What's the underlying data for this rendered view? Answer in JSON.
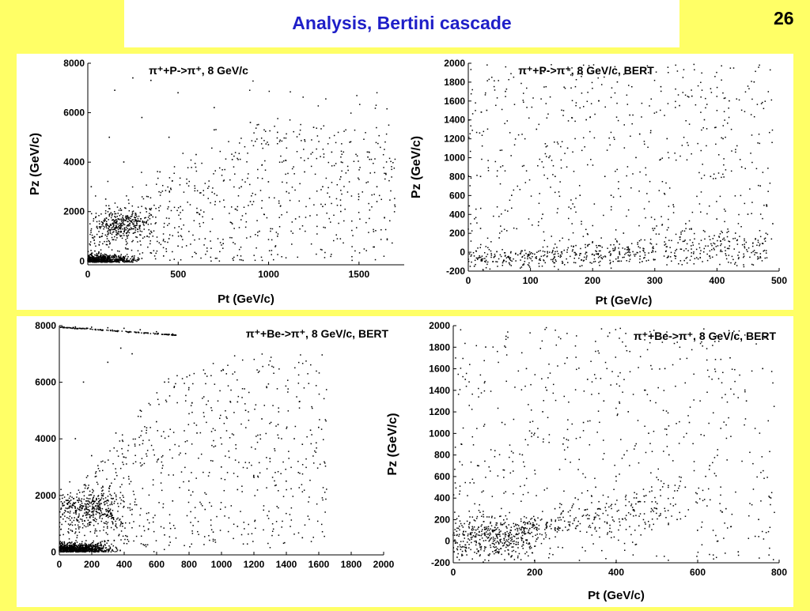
{
  "slide": {
    "title": "Analysis, Bertini cascade",
    "page_number": "26",
    "colors": {
      "background": "#ffff66",
      "title": "#1f1fc8",
      "panel": "#ffffff",
      "points": "#000000"
    }
  },
  "chart_data": [
    {
      "type": "scatter",
      "title": "π⁺+P->π⁺, 8 GeV/c",
      "xlabel": "Pt (GeV/c)",
      "ylabel": "Pz (GeV/c)",
      "xlim": [
        0,
        1750
      ],
      "ylim": [
        -150,
        8000
      ],
      "xticks": [
        0,
        500,
        1000,
        1500
      ],
      "yticks": [
        0,
        2000,
        4000,
        6000,
        8000
      ],
      "grid": false,
      "marker_color": "#000000",
      "estimated_point_count": 2600,
      "points": [
        [
          120,
          50
        ],
        [
          60,
          20
        ],
        [
          200,
          10
        ],
        [
          300,
          100
        ],
        [
          150,
          1800
        ],
        [
          250,
          1500
        ],
        [
          180,
          1300
        ],
        [
          420,
          200
        ],
        [
          500,
          600
        ],
        [
          650,
          900
        ],
        [
          800,
          1500
        ],
        [
          900,
          2400
        ],
        [
          1000,
          3200
        ],
        [
          1100,
          2800
        ],
        [
          1200,
          3600
        ],
        [
          1300,
          3000
        ],
        [
          1400,
          3400
        ],
        [
          1500,
          2600
        ],
        [
          1600,
          3000
        ],
        [
          1650,
          3500
        ],
        [
          1550,
          4200
        ],
        [
          1350,
          4400
        ],
        [
          1200,
          4900
        ],
        [
          1050,
          5200
        ],
        [
          900,
          5600
        ],
        [
          700,
          6200
        ],
        [
          500,
          6800
        ],
        [
          350,
          7300
        ],
        [
          250,
          7400
        ],
        [
          150,
          6900
        ],
        [
          120,
          5000
        ],
        [
          200,
          4000
        ],
        [
          400,
          3600
        ],
        [
          600,
          4300
        ],
        [
          800,
          4100
        ],
        [
          1000,
          4700
        ],
        [
          1250,
          5400
        ],
        [
          1450,
          4800
        ],
        [
          1300,
          2200
        ],
        [
          1150,
          1700
        ],
        [
          950,
          1200
        ],
        [
          750,
          700
        ],
        [
          600,
          300
        ],
        [
          450,
          900
        ],
        [
          350,
          1200
        ],
        [
          100,
          2500
        ],
        [
          80,
          1000
        ],
        [
          40,
          400
        ],
        [
          20,
          3000
        ],
        [
          300,
          5800
        ],
        [
          450,
          5000
        ],
        [
          700,
          5300
        ],
        [
          850,
          3000
        ],
        [
          1050,
          1000
        ],
        [
          1400,
          2000
        ],
        [
          1600,
          2400
        ]
      ]
    },
    {
      "type": "scatter",
      "title": "π⁺+P->π⁺, 8 GeV/c, BERT",
      "xlabel": "Pt (GeV/c)",
      "ylabel": "Pz (GeV/c)",
      "xlim": [
        0,
        500
      ],
      "ylim": [
        -200,
        2000
      ],
      "xticks": [
        0,
        100,
        200,
        300,
        400,
        500
      ],
      "yticks": [
        -200,
        0,
        200,
        400,
        600,
        800,
        1000,
        1200,
        1400,
        1600,
        1800,
        2000
      ],
      "grid": false,
      "marker_color": "#000000",
      "estimated_point_count": 1800,
      "points": [
        [
          80,
          -30
        ],
        [
          100,
          -20
        ],
        [
          150,
          0
        ],
        [
          200,
          100
        ],
        [
          250,
          200
        ],
        [
          300,
          250
        ],
        [
          350,
          300
        ],
        [
          400,
          350
        ],
        [
          450,
          400
        ],
        [
          480,
          500
        ],
        [
          20,
          250
        ],
        [
          50,
          150
        ],
        [
          120,
          400
        ],
        [
          180,
          600
        ],
        [
          220,
          800
        ],
        [
          270,
          1000
        ],
        [
          320,
          1200
        ],
        [
          380,
          1400
        ],
        [
          420,
          1600
        ],
        [
          460,
          1800
        ],
        [
          90,
          1900
        ],
        [
          60,
          1700
        ],
        [
          30,
          1500
        ],
        [
          110,
          1300
        ],
        [
          160,
          1100
        ],
        [
          210,
          1600
        ],
        [
          260,
          1450
        ],
        [
          310,
          1750
        ],
        [
          360,
          1650
        ],
        [
          410,
          1200
        ],
        [
          440,
          900
        ],
        [
          470,
          700
        ],
        [
          490,
          300
        ],
        [
          10,
          -150
        ],
        [
          40,
          -100
        ],
        [
          130,
          1000
        ],
        [
          190,
          1400
        ],
        [
          240,
          1800
        ],
        [
          290,
          1900
        ],
        [
          340,
          1550
        ],
        [
          390,
          800
        ],
        [
          430,
          200
        ],
        [
          470,
          -50
        ],
        [
          20,
          800
        ],
        [
          70,
          600
        ],
        [
          140,
          800
        ],
        [
          230,
          600
        ],
        [
          330,
          500
        ],
        [
          280,
          -100
        ],
        [
          180,
          -150
        ]
      ]
    },
    {
      "type": "scatter",
      "title": "π⁺+Be->π⁺, 8 GeV/c, BERT",
      "xlabel": "",
      "ylabel": "",
      "xlim": [
        0,
        2000
      ],
      "ylim": [
        -100,
        8000
      ],
      "xticks": [
        0,
        200,
        400,
        600,
        800,
        1000,
        1200,
        1400,
        1600,
        1800,
        2000
      ],
      "yticks": [
        0,
        2000,
        4000,
        6000,
        8000
      ],
      "grid": false,
      "marker_color": "#000000",
      "estimated_point_count": 3200,
      "points": [
        [
          20,
          7950
        ],
        [
          100,
          7950
        ],
        [
          200,
          7940
        ],
        [
          300,
          7920
        ],
        [
          400,
          7900
        ],
        [
          500,
          7850
        ],
        [
          600,
          7780
        ],
        [
          700,
          7700
        ],
        [
          50,
          50
        ],
        [
          100,
          80
        ],
        [
          150,
          120
        ],
        [
          200,
          200
        ],
        [
          300,
          400
        ],
        [
          400,
          300
        ],
        [
          120,
          1500
        ],
        [
          180,
          1800
        ],
        [
          250,
          1200
        ],
        [
          350,
          900
        ],
        [
          450,
          1500
        ],
        [
          550,
          800
        ],
        [
          650,
          600
        ],
        [
          700,
          1800
        ],
        [
          800,
          2500
        ],
        [
          900,
          1500
        ],
        [
          1000,
          3000
        ],
        [
          1100,
          2200
        ],
        [
          1200,
          2700
        ],
        [
          1300,
          3300
        ],
        [
          1400,
          2500
        ],
        [
          1500,
          3800
        ],
        [
          1600,
          4400
        ],
        [
          1550,
          4300
        ],
        [
          1450,
          4000
        ],
        [
          1250,
          4700
        ],
        [
          1100,
          5300
        ],
        [
          1000,
          6400
        ],
        [
          900,
          6300
        ],
        [
          800,
          5800
        ],
        [
          650,
          6000
        ],
        [
          500,
          5000
        ],
        [
          450,
          7000
        ],
        [
          380,
          7200
        ],
        [
          300,
          6700
        ],
        [
          150,
          6000
        ],
        [
          100,
          4000
        ],
        [
          200,
          3400
        ],
        [
          350,
          4200
        ],
        [
          600,
          4600
        ],
        [
          850,
          4200
        ],
        [
          1150,
          5000
        ],
        [
          1350,
          4500
        ],
        [
          1500,
          500
        ],
        [
          1100,
          900
        ],
        [
          950,
          700
        ]
      ]
    },
    {
      "type": "scatter",
      "title": "π⁺+Be->π⁺, 8 GeV/c, BERT",
      "xlabel": "Pt (GeV/c)",
      "ylabel": "Pz (GeV/c)",
      "xlim": [
        0,
        800
      ],
      "ylim": [
        -200,
        2000
      ],
      "xticks": [
        0,
        200,
        400,
        600,
        800
      ],
      "yticks": [
        -200,
        0,
        200,
        400,
        600,
        800,
        1000,
        1200,
        1400,
        1600,
        1800,
        2000
      ],
      "grid": false,
      "marker_color": "#000000",
      "estimated_point_count": 2000,
      "points": [
        [
          50,
          50
        ],
        [
          100,
          100
        ],
        [
          150,
          0
        ],
        [
          200,
          200
        ],
        [
          250,
          300
        ],
        [
          300,
          400
        ],
        [
          350,
          500
        ],
        [
          400,
          600
        ],
        [
          450,
          400
        ],
        [
          500,
          300
        ],
        [
          550,
          200
        ],
        [
          600,
          100
        ],
        [
          650,
          0
        ],
        [
          700,
          -100
        ],
        [
          750,
          200
        ],
        [
          780,
          400
        ],
        [
          30,
          1500
        ],
        [
          80,
          1800
        ],
        [
          130,
          1900
        ],
        [
          180,
          1600
        ],
        [
          230,
          1400
        ],
        [
          280,
          1700
        ],
        [
          330,
          1500
        ],
        [
          380,
          1900
        ],
        [
          430,
          1200
        ],
        [
          480,
          1000
        ],
        [
          530,
          800
        ],
        [
          580,
          1100
        ],
        [
          630,
          700
        ],
        [
          680,
          1700
        ],
        [
          720,
          1300
        ],
        [
          760,
          1600
        ],
        [
          20,
          900
        ],
        [
          60,
          700
        ],
        [
          120,
          1100
        ],
        [
          170,
          800
        ],
        [
          220,
          1200
        ],
        [
          270,
          900
        ],
        [
          320,
          1100
        ],
        [
          370,
          1300
        ],
        [
          420,
          800
        ],
        [
          470,
          1400
        ],
        [
          520,
          1600
        ],
        [
          570,
          500
        ],
        [
          620,
          600
        ],
        [
          670,
          300
        ],
        [
          10,
          -150
        ],
        [
          90,
          -120
        ],
        [
          200,
          -180
        ],
        [
          400,
          -200
        ]
      ]
    }
  ]
}
